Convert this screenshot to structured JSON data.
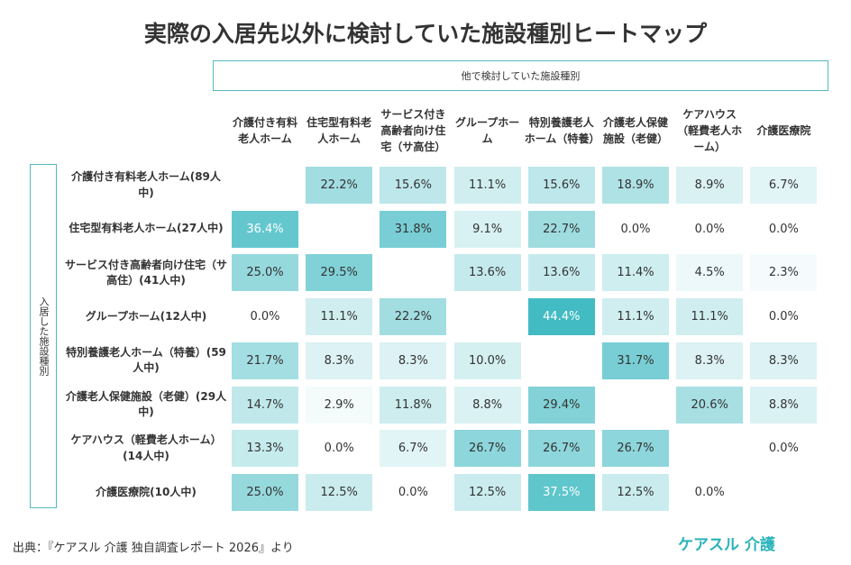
{
  "chart_data": {
    "type": "heatmap",
    "title": "実際の入居先以外に検討していた施設種別ヒートマップ",
    "x_label": "他で検討していた施設種別",
    "y_label": "入居した施設種別",
    "columns": [
      "介護付き有料老人ホーム",
      "住宅型有料老人ホーム",
      "サービス付き高齢者向け住宅（サ高住）",
      "グループホーム",
      "特別養護老人ホーム（特養）",
      "介護老人保健施設（老健）",
      "ケアハウス（軽費老人ホーム）",
      "介護医療院"
    ],
    "rows": [
      "介護付き有料老人ホーム(89人中)",
      "住宅型有料老人ホーム(27人中)",
      "サービス付き高齢者向け住宅（サ高住）(41人中)",
      "グループホーム(12人中)",
      "特別養護老人ホーム（特養）(59人中)",
      "介護老人保健施設（老健）(29人中)",
      "ケアハウス（軽費老人ホーム）(14人中)",
      "介護医療院(10人中)"
    ],
    "values": [
      [
        null,
        22.2,
        15.6,
        11.1,
        15.6,
        18.9,
        8.9,
        6.7
      ],
      [
        36.4,
        null,
        31.8,
        9.1,
        22.7,
        0.0,
        0.0,
        0.0
      ],
      [
        25.0,
        29.5,
        null,
        13.6,
        13.6,
        11.4,
        4.5,
        2.3
      ],
      [
        0.0,
        11.1,
        22.2,
        null,
        44.4,
        11.1,
        11.1,
        0.0
      ],
      [
        21.7,
        8.3,
        8.3,
        10.0,
        null,
        31.7,
        8.3,
        8.3
      ],
      [
        14.7,
        2.9,
        11.8,
        8.8,
        29.4,
        null,
        20.6,
        8.8
      ],
      [
        13.3,
        0.0,
        6.7,
        26.7,
        26.7,
        26.7,
        null,
        0.0
      ],
      [
        25.0,
        12.5,
        0.0,
        12.5,
        37.5,
        12.5,
        0.0,
        null
      ]
    ],
    "value_labels": [
      [
        null,
        "22.2%",
        "15.6%",
        "11.1%",
        "15.6%",
        "18.9%",
        "8.9%",
        "6.7%"
      ],
      [
        "36.4%",
        null,
        "31.8%",
        "9.1%",
        "22.7%",
        "0.0%",
        "0.0%",
        "0.0%"
      ],
      [
        "25.0%",
        "29.5%",
        null,
        "13.6%",
        "13.6%",
        "11.4%",
        "4.5%",
        "2.3%"
      ],
      [
        "0.0%",
        "11.1%",
        "22.2%",
        null,
        "44.4%",
        "11.1%",
        "11.1%",
        "0.0%"
      ],
      [
        "21.7%",
        "8.3%",
        "8.3%",
        "10.0%",
        null,
        "31.7%",
        "8.3%",
        "8.3%"
      ],
      [
        "14.7%",
        "2.9%",
        "11.8%",
        "8.8%",
        "29.4%",
        null,
        "20.6%",
        "8.8%"
      ],
      [
        "13.3%",
        "0.0%",
        "6.7%",
        "26.7%",
        "26.7%",
        "26.7%",
        null,
        "0.0%"
      ],
      [
        "25.0%",
        "12.5%",
        "0.0%",
        "12.5%",
        "37.5%",
        "12.5%",
        "0.0%",
        null
      ]
    ],
    "color_min": "#ffffff",
    "color_max": "#42bbc3"
  },
  "source": "出典：『ケアスル 介護 独自調査レポート 2026』より",
  "logo": "ケアスル 介護"
}
